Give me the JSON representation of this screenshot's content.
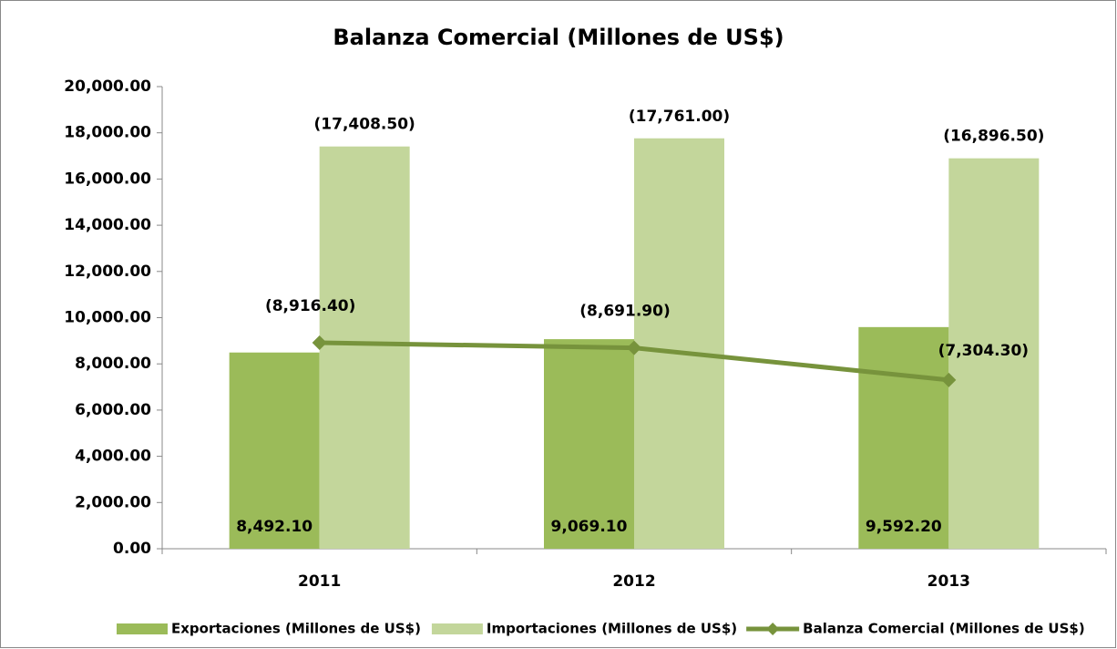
{
  "chart_data": {
    "type": "bar",
    "title": "Balanza Comercial (Millones de US$)",
    "categories": [
      "2011",
      "2012",
      "2013"
    ],
    "series": [
      {
        "name": "Exportaciones (Millones de US$)",
        "type": "bar",
        "color": "#9bbb59",
        "values": [
          8492.1,
          9069.1,
          9592.2
        ],
        "value_labels": [
          "8,492.10",
          "9,069.10",
          "9,592.20"
        ]
      },
      {
        "name": "Importaciones (Millones de US$)",
        "type": "bar",
        "color": "#c3d69b",
        "values": [
          17408.5,
          17761.0,
          16896.5
        ],
        "value_labels": [
          "(17,408.50)",
          "(17,761.00)",
          "(16,896.50)"
        ]
      },
      {
        "name": "Balanza Comercial (Millones de US$)",
        "type": "line",
        "color": "#77933c",
        "values": [
          8916.4,
          8691.9,
          7304.3
        ],
        "value_labels": [
          "(8,916.40)",
          "(8,691.90)",
          "(7,304.30)"
        ]
      }
    ],
    "ylim": [
      0,
      20000
    ],
    "yticks": [
      {
        "value": 0,
        "label": "0.00"
      },
      {
        "value": 2000,
        "label": "2,000.00"
      },
      {
        "value": 4000,
        "label": "4,000.00"
      },
      {
        "value": 6000,
        "label": "6,000.00"
      },
      {
        "value": 8000,
        "label": "8,000.00"
      },
      {
        "value": 10000,
        "label": "10,000.00"
      },
      {
        "value": 12000,
        "label": "12,000.00"
      },
      {
        "value": 14000,
        "label": "14,000.00"
      },
      {
        "value": 16000,
        "label": "16,000.00"
      },
      {
        "value": 18000,
        "label": "18,000.00"
      },
      {
        "value": 20000,
        "label": "20,000.00"
      }
    ],
    "grid": false,
    "legend": "bottom"
  }
}
